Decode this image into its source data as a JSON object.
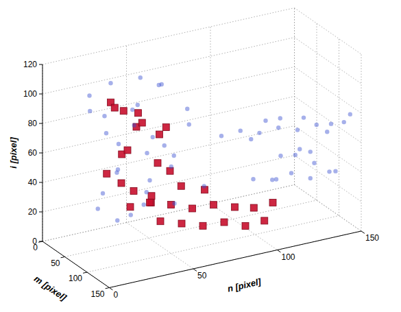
{
  "chart_data": {
    "type": "scatter3d",
    "x_label": "m [pixel]",
    "y_label": "n [pixel]",
    "z_label": "i [pixel]",
    "xlim": [
      0,
      150
    ],
    "ylim": [
      0,
      150
    ],
    "zlim": [
      0,
      120
    ],
    "xticks": [
      0,
      50,
      100,
      150
    ],
    "yticks": [
      0,
      50,
      100,
      150
    ],
    "zticks": [
      0,
      20,
      40,
      60,
      80,
      100,
      120
    ],
    "grid": true,
    "series": [
      {
        "color": "#c8102e",
        "marker": "square",
        "x": [
          40,
          50,
          45,
          60,
          35,
          55,
          65,
          40,
          70,
          50,
          60,
          45,
          75,
          35,
          55,
          65,
          30,
          70,
          90,
          100,
          110,
          120,
          130,
          135,
          140,
          95,
          105,
          115,
          125,
          135,
          140,
          85,
          100
        ],
        "y": [
          30,
          35,
          45,
          40,
          50,
          55,
          30,
          40,
          50,
          25,
          60,
          35,
          45,
          45,
          50,
          35,
          35,
          55,
          40,
          50,
          60,
          70,
          80,
          90,
          100,
          45,
          55,
          65,
          75,
          85,
          95,
          60,
          70
        ],
        "z": [
          95,
          90,
          85,
          80,
          75,
          70,
          65,
          60,
          55,
          50,
          45,
          40,
          35,
          30,
          25,
          28,
          88,
          78,
          35,
          33,
          30,
          32,
          30,
          28,
          30,
          22,
          20,
          18,
          20,
          17,
          19,
          40,
          38
        ]
      },
      {
        "color": "#3a4fd0",
        "marker": "circle",
        "x": [
          30,
          40,
          50,
          60,
          35,
          70,
          45,
          25,
          80,
          55,
          30,
          65,
          85,
          40,
          20,
          75,
          50,
          90,
          35,
          60,
          25,
          80,
          45,
          70,
          30,
          55,
          85,
          20,
          65,
          50,
          100,
          105,
          110,
          115,
          120,
          125,
          120,
          130,
          110,
          115,
          125,
          105,
          130,
          100,
          115,
          120,
          125,
          130,
          135,
          120,
          130,
          110,
          120,
          125,
          115,
          130
        ],
        "y": [
          20,
          30,
          45,
          55,
          60,
          35,
          25,
          50,
          65,
          40,
          30,
          70,
          50,
          55,
          40,
          25,
          65,
          40,
          35,
          20,
          70,
          75,
          50,
          60,
          25,
          30,
          30,
          55,
          45,
          15,
          80,
          90,
          100,
          110,
          120,
          130,
          140,
          145,
          95,
          125,
          150,
          105,
          135,
          115,
          95,
          105,
          115,
          125,
          135,
          130,
          140,
          110,
          110,
          120,
          120,
          125
        ],
        "z": [
          100,
          108,
          110,
          105,
          98,
          95,
          88,
          85,
          90,
          80,
          72,
          75,
          70,
          65,
          60,
          58,
          52,
          50,
          45,
          40,
          38,
          35,
          30,
          25,
          22,
          18,
          28,
          15,
          62,
          95,
          72,
          74,
          71,
          73,
          70,
          72,
          69,
          71,
          68,
          76,
          74,
          77,
          67,
          75,
          42,
          40,
          43,
          38,
          41,
          45,
          39,
          37,
          55,
          58,
          52,
          56
        ]
      }
    ]
  }
}
